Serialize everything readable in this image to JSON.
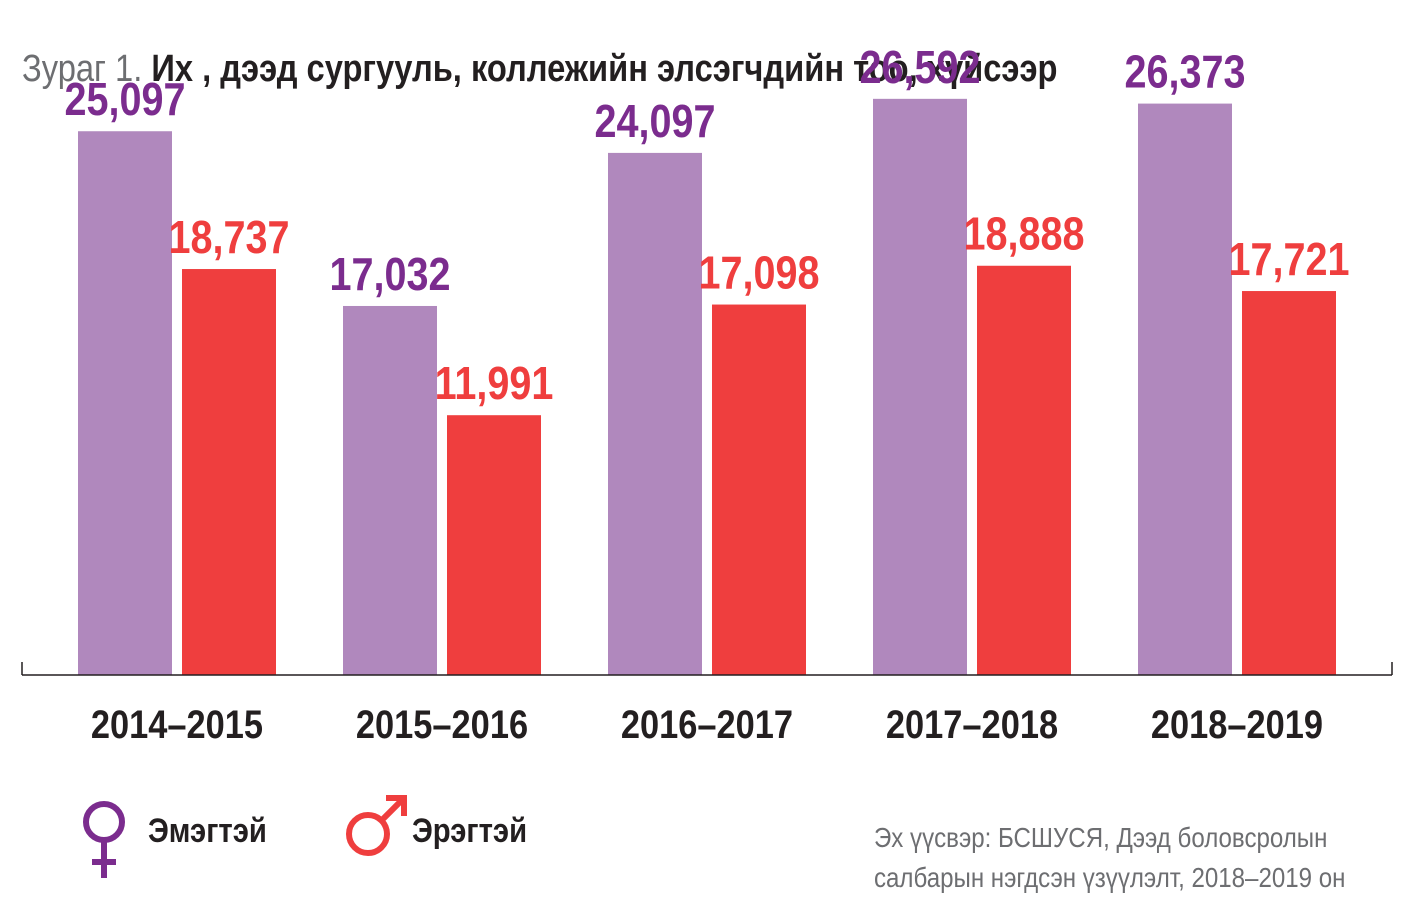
{
  "header": {
    "title_prefix": "Зураг 1.",
    "title_main": "Их , дээд сургууль, коллежийн элсэгчдийн тоо, хүйсээр"
  },
  "legend": [
    {
      "label": "Эмэгтэй",
      "icon": "female-symbol-icon",
      "color": "#7b2c8e"
    },
    {
      "label": "Эрэгтэй",
      "icon": "male-symbol-icon",
      "color": "#ef3e3e"
    }
  ],
  "source": {
    "line1": "Эх үүсвэр: БСШУСЯ, Дээд боловсролын",
    "line2": "салбарын нэгдсэн үзүүлэлт, 2018–2019 он"
  },
  "chart_data": {
    "type": "bar",
    "categories": [
      "2014–2015",
      "2015–2016",
      "2016–2017",
      "2017–2018",
      "2018–2019"
    ],
    "series": [
      {
        "name": "Эмэгтэй",
        "values": [
          25097,
          17032,
          24097,
          26592,
          26373
        ],
        "labels": [
          "25,097",
          "17,032",
          "24,097",
          "26,592",
          "26,373"
        ],
        "bar_color": "#b088bd",
        "label_color": "#7b2c8e"
      },
      {
        "name": "Эрэгтэй",
        "values": [
          18737,
          11991,
          17098,
          18888,
          17721
        ],
        "labels": [
          "18,737",
          "11,991",
          "17,098",
          "18,888",
          "17,721"
        ],
        "bar_color": "#ef3e3e",
        "label_color": "#ef3e3e"
      }
    ],
    "ylim": [
      0,
      30000
    ],
    "grid": false,
    "legend_position": "bottom-left"
  }
}
